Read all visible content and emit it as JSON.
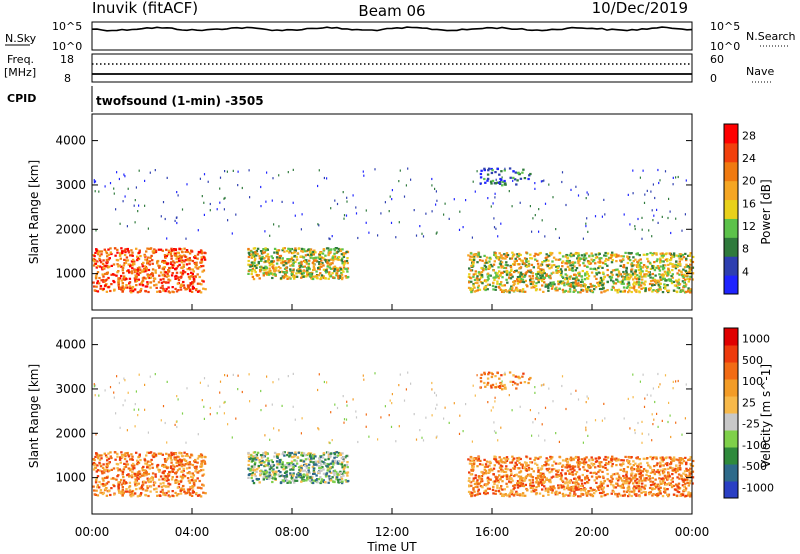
{
  "header": {
    "station": "Inuvik (fitACF)",
    "beam": "Beam 06",
    "date": "10/Dec/2019"
  },
  "noise_panel": {
    "left_label": "N.Sky",
    "right_label": "N.Search",
    "left_ticks": [
      "10^5",
      "10^0"
    ],
    "right_ticks": [
      "10^5",
      "10^0"
    ]
  },
  "freq_panel": {
    "left_label_1": "Freq.",
    "left_label_2": "[MHz]",
    "right_label": "Nave",
    "left_ticks": [
      "18",
      "8"
    ],
    "right_ticks": [
      "60",
      "0"
    ]
  },
  "cpid_panel": {
    "label": "CPID",
    "text": "twofsound (1-min) -3505"
  },
  "chart_data": [
    {
      "type": "heatmap",
      "name": "power",
      "ylabel": "Slant Range [km]",
      "colorbar_label": "Power [dB]",
      "colorbar_ticks": [
        "4",
        "8",
        "12",
        "16",
        "20",
        "24",
        "28"
      ],
      "colorbar_range": [
        0,
        30
      ],
      "colors": [
        "#1f24ff",
        "#2e3fb0",
        "#2f7a3c",
        "#5cc24a",
        "#e9d11b",
        "#f5a623",
        "#f07a10",
        "#f2400c",
        "#ff0000"
      ],
      "ylim": [
        180,
        4600
      ],
      "yticks": [
        "1000",
        "2000",
        "3000",
        "4000"
      ],
      "ytick_values": [
        1000,
        2000,
        3000,
        4000
      ],
      "xlim_hours": [
        0,
        24
      ],
      "echo_regions": [
        {
          "t0": 0.0,
          "t1": 4.5,
          "r0": 600,
          "r1": 1600,
          "level": "strong"
        },
        {
          "t0": 6.2,
          "t1": 10.2,
          "r0": 900,
          "r1": 1600,
          "level": "medium"
        },
        {
          "t0": 15.0,
          "t1": 24.0,
          "r0": 600,
          "r1": 1500,
          "level": "medium"
        },
        {
          "t0": 15.5,
          "t1": 17.5,
          "r0": 3000,
          "r1": 3400,
          "level": "weak"
        }
      ]
    },
    {
      "type": "heatmap",
      "name": "velocity",
      "ylabel": "Slant Range [km]",
      "colorbar_label": "Velocity [m s^-1]",
      "colorbar_ticks": [
        "1000",
        "500",
        "100",
        "25",
        "-25",
        "-100",
        "-500",
        "-1000"
      ],
      "colors": [
        "#2a3fc4",
        "#2e6a8a",
        "#2f8a3c",
        "#7fd04a",
        "#c8c8c8",
        "#f7b94a",
        "#f39c27",
        "#f26b14",
        "#ee3a0c",
        "#e00000"
      ],
      "ylim": [
        180,
        4600
      ],
      "yticks": [
        "1000",
        "2000",
        "3000",
        "4000"
      ],
      "ytick_values": [
        1000,
        2000,
        3000,
        4000
      ],
      "xlim_hours": [
        0,
        24
      ]
    }
  ],
  "x_axis": {
    "label": "Time UT",
    "ticks": [
      "00:00",
      "04:00",
      "08:00",
      "12:00",
      "16:00",
      "20:00",
      "00:00"
    ]
  }
}
